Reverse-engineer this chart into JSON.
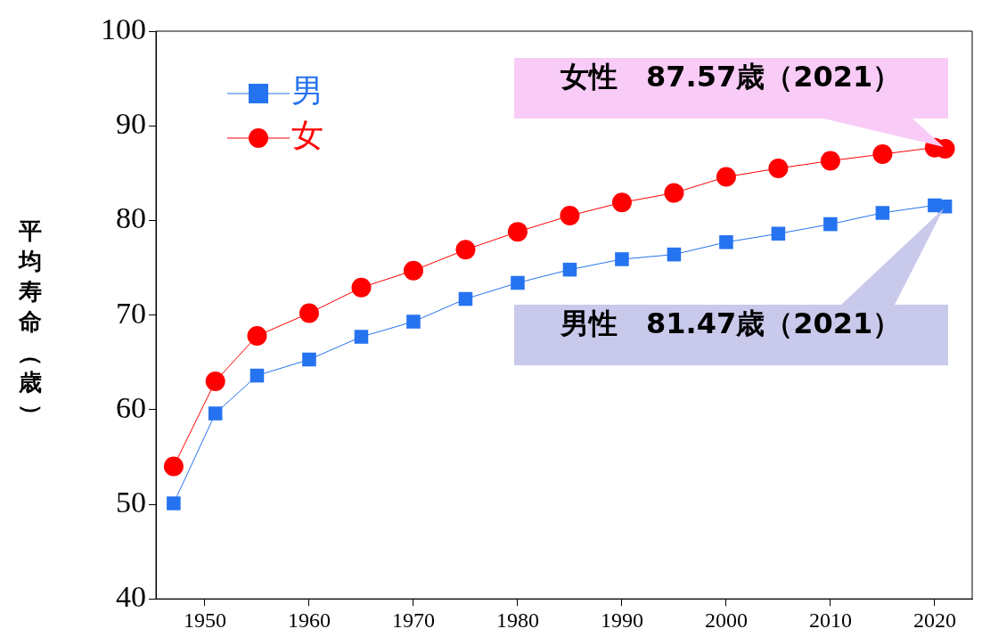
{
  "chart_data": {
    "type": "line",
    "ylabel": "平均寿命（歳）",
    "xlim": [
      1945.3,
      2023.6
    ],
    "xticks": [
      1950,
      1960,
      1970,
      1980,
      1990,
      2000,
      2010,
      2020
    ],
    "ylim": [
      40,
      100
    ],
    "yticks": [
      40,
      50,
      60,
      70,
      80,
      90,
      100
    ],
    "grid": false,
    "legend": "top left",
    "line_style": "solid",
    "series": [
      {
        "name": "男",
        "color": "#2673f0",
        "marker": "square",
        "x": [
          1947,
          1951,
          1955,
          1960,
          1965,
          1970,
          1975,
          1980,
          1985,
          1990,
          1995,
          2000,
          2005,
          2010,
          2015,
          2020,
          2021
        ],
        "values": [
          50.1,
          59.6,
          63.6,
          65.3,
          67.7,
          69.3,
          71.7,
          73.4,
          74.8,
          75.9,
          76.4,
          77.7,
          78.6,
          79.6,
          80.8,
          81.6,
          81.47
        ]
      },
      {
        "name": "女",
        "color": "#ff0000",
        "marker": "circle",
        "x": [
          1947,
          1951,
          1955,
          1960,
          1965,
          1970,
          1975,
          1980,
          1985,
          1990,
          1995,
          2000,
          2005,
          2010,
          2015,
          2020,
          2021
        ],
        "values": [
          54.0,
          63.0,
          67.8,
          70.2,
          72.9,
          74.7,
          76.9,
          78.8,
          80.5,
          81.9,
          82.9,
          84.6,
          85.5,
          86.3,
          87.0,
          87.7,
          87.57
        ]
      }
    ],
    "annotations": [
      "女性　87.57歳（2021）",
      "男性　81.47歳（2021）"
    ]
  }
}
